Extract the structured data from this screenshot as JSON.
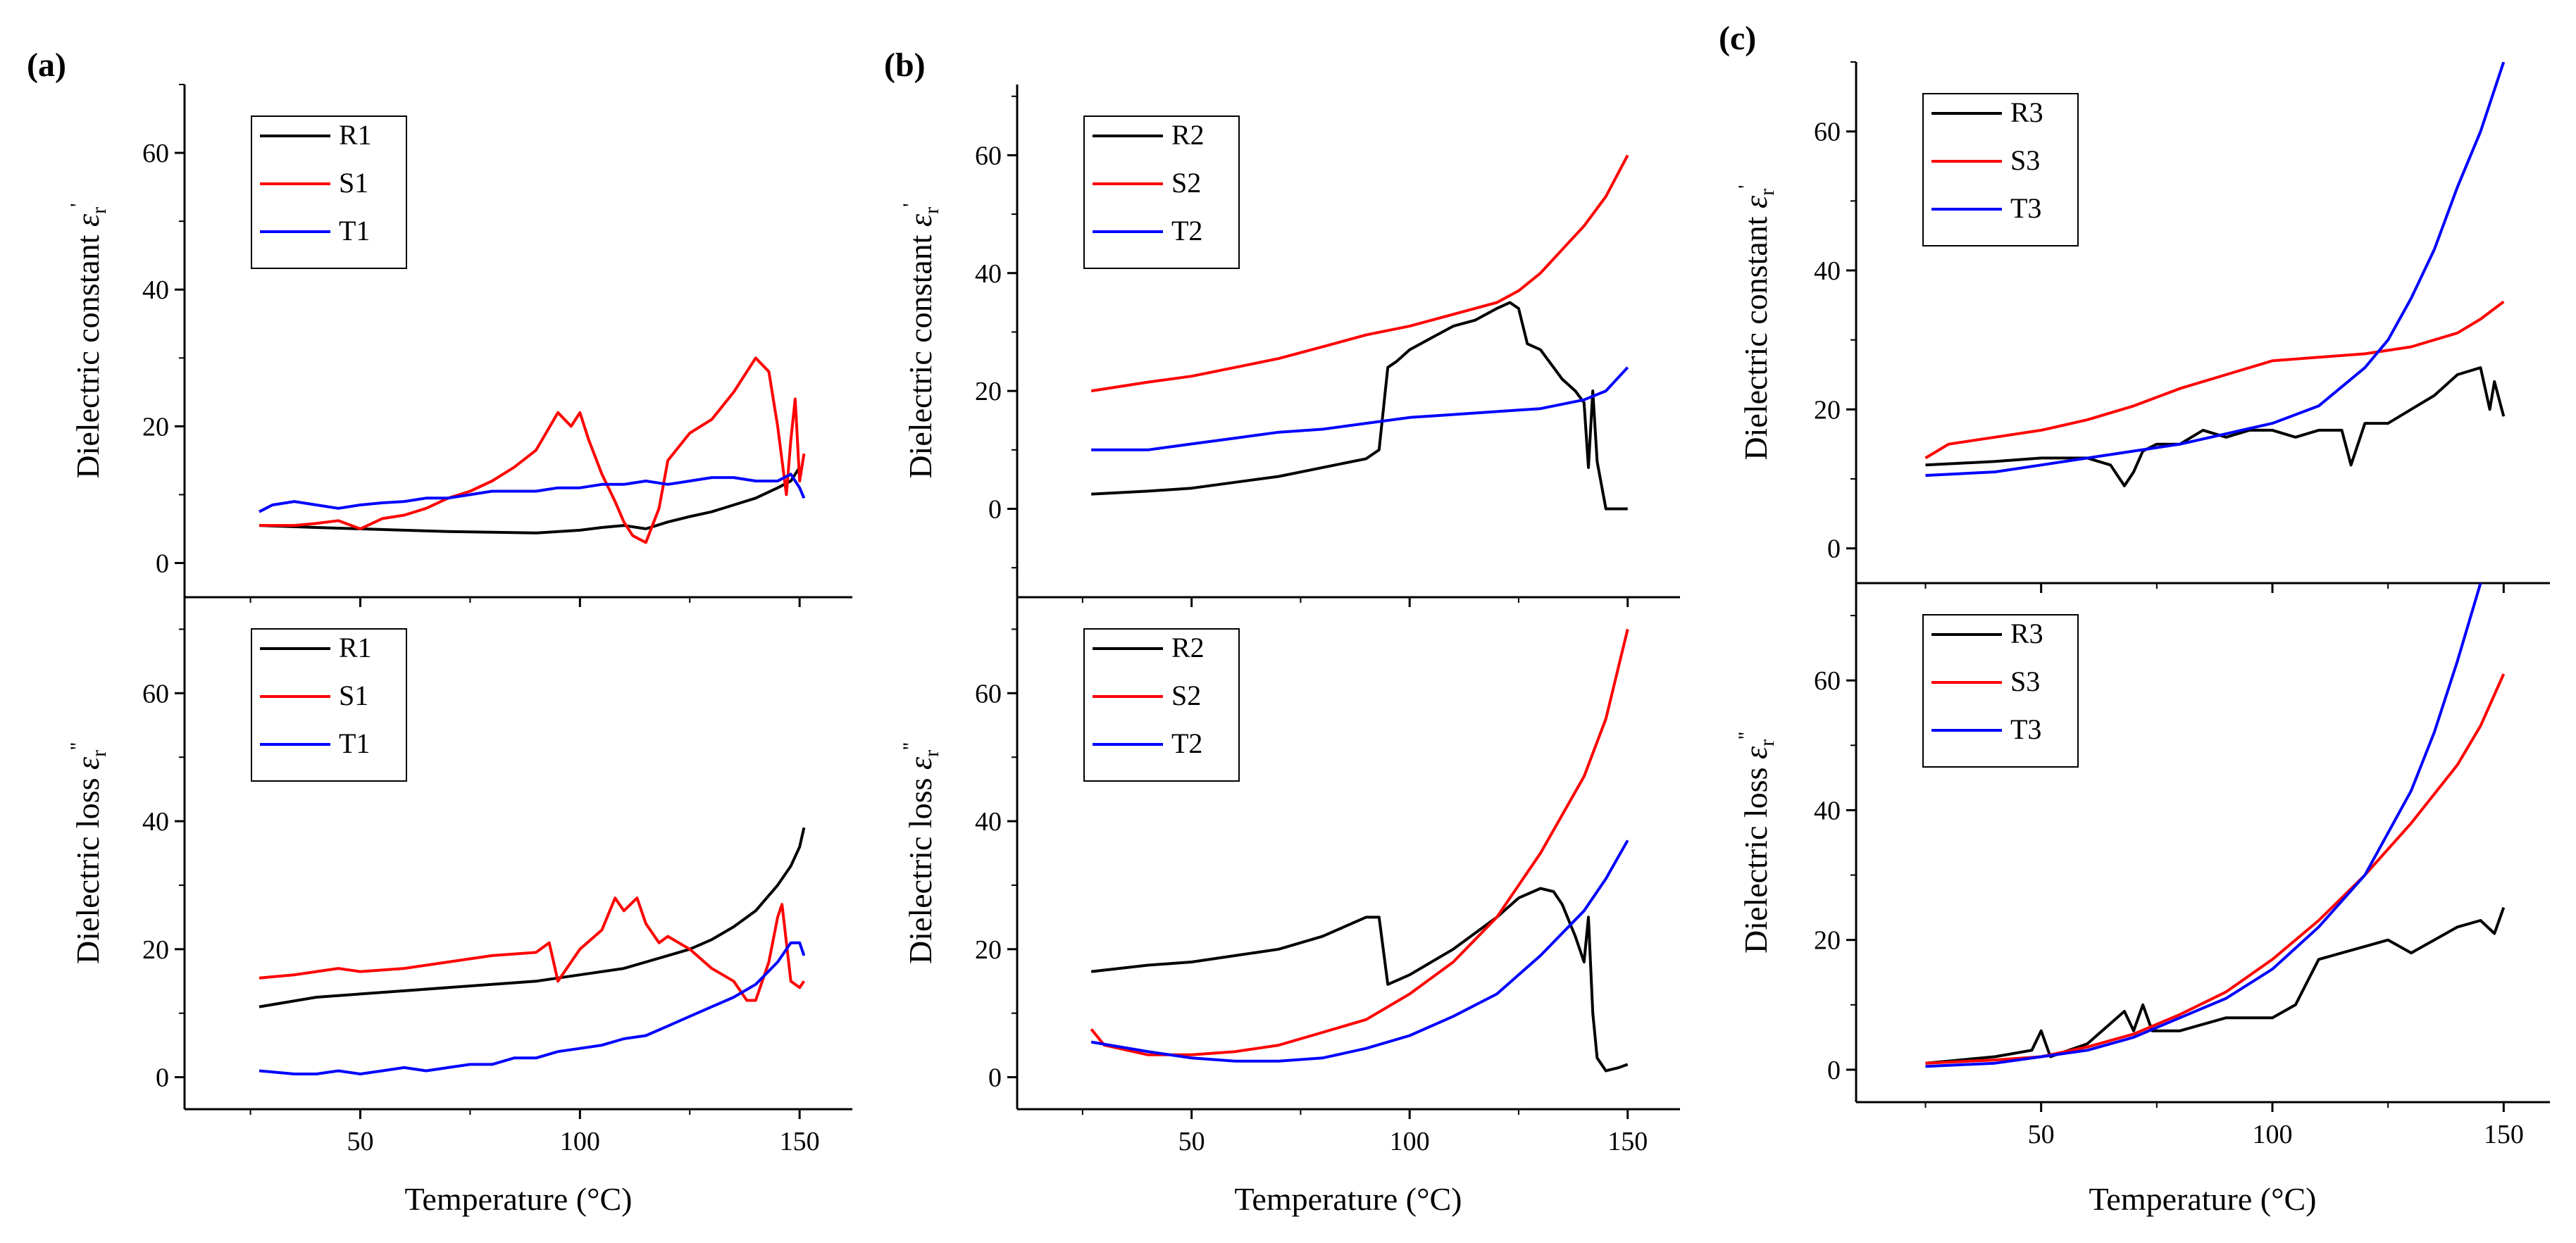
{
  "panels": [
    {
      "letter": "(a)",
      "xlabel": "Temperature (°C)"
    },
    {
      "letter": "(b)",
      "xlabel": "Temperature (°C)"
    },
    {
      "letter": "(c)",
      "xlabel": "Temperature (°C)"
    }
  ],
  "colors": {
    "R": "#000000",
    "S": "#ff0000",
    "T": "#0000ff",
    "axis": "#000000"
  },
  "chart_data": [
    {
      "type": "line",
      "panel": "(a)",
      "subplot": "top",
      "ylabel": "Dielectric constant ε_r'",
      "ylabel_main": "Dielectric constant ",
      "ylabel_sym": "ε",
      "ylabel_sub": "r",
      "ylabel_sup": "'",
      "xlim": [
        10,
        162
      ],
      "ylim": [
        -5,
        70
      ],
      "xticks": [
        50,
        100,
        150
      ],
      "yticks": [
        0,
        20,
        40,
        60
      ],
      "legend_position": "top-left",
      "series": [
        {
          "name": "R1",
          "color": "#000000",
          "x": [
            27,
            40,
            50,
            60,
            70,
            80,
            90,
            100,
            105,
            110,
            115,
            120,
            125,
            130,
            135,
            140,
            145,
            148,
            150
          ],
          "y": [
            5.5,
            5.2,
            5.0,
            4.8,
            4.6,
            4.5,
            4.4,
            4.8,
            5.2,
            5.5,
            5.0,
            6.0,
            6.8,
            7.5,
            8.5,
            9.5,
            11.0,
            12.0,
            14.0
          ]
        },
        {
          "name": "S1",
          "color": "#ff0000",
          "x": [
            27,
            35,
            40,
            45,
            50,
            55,
            60,
            65,
            70,
            75,
            80,
            85,
            90,
            95,
            98,
            100,
            102,
            105,
            108,
            110,
            112,
            115,
            118,
            120,
            125,
            130,
            135,
            140,
            143,
            145,
            147,
            148,
            149,
            150,
            151
          ],
          "y": [
            5.5,
            5.5,
            5.8,
            6.2,
            5.0,
            6.5,
            7.0,
            8.0,
            9.5,
            10.5,
            12.0,
            14.0,
            16.5,
            22.0,
            20.0,
            22.0,
            18.0,
            13.0,
            9.0,
            6.0,
            4.0,
            3.0,
            8.0,
            15.0,
            19.0,
            21.0,
            25.0,
            30.0,
            28.0,
            20.0,
            10.0,
            18.0,
            24.0,
            12.0,
            16.0
          ]
        },
        {
          "name": "T1",
          "color": "#0000ff",
          "x": [
            27,
            30,
            35,
            40,
            45,
            50,
            55,
            60,
            65,
            70,
            75,
            80,
            85,
            90,
            95,
            100,
            105,
            110,
            115,
            120,
            125,
            130,
            135,
            140,
            145,
            148,
            150,
            151
          ],
          "y": [
            7.5,
            8.5,
            9.0,
            8.5,
            8.0,
            8.5,
            8.8,
            9.0,
            9.5,
            9.5,
            10.0,
            10.5,
            10.5,
            10.5,
            11.0,
            11.0,
            11.5,
            11.5,
            12.0,
            11.5,
            12.0,
            12.5,
            12.5,
            12.0,
            12.0,
            13.0,
            11.0,
            9.5
          ]
        }
      ]
    },
    {
      "type": "line",
      "panel": "(a)",
      "subplot": "bottom",
      "ylabel": "Dielectric loss ε_r''",
      "ylabel_main": "Dielectric loss ",
      "ylabel_sym": "ε",
      "ylabel_sub": "r",
      "ylabel_sup": "''",
      "xlim": [
        10,
        162
      ],
      "ylim": [
        -5,
        75
      ],
      "xticks": [
        50,
        100,
        150
      ],
      "yticks": [
        0,
        20,
        40,
        60
      ],
      "legend_position": "top-left",
      "series": [
        {
          "name": "R1",
          "color": "#000000",
          "x": [
            27,
            40,
            50,
            60,
            70,
            80,
            90,
            100,
            110,
            115,
            120,
            125,
            130,
            135,
            140,
            145,
            148,
            150,
            151
          ],
          "y": [
            11,
            12.5,
            13,
            13.5,
            14,
            14.5,
            15,
            16,
            17,
            18,
            19,
            20,
            21.5,
            23.5,
            26,
            30,
            33,
            36,
            39
          ]
        },
        {
          "name": "S1",
          "color": "#ff0000",
          "x": [
            27,
            35,
            40,
            45,
            50,
            60,
            70,
            80,
            90,
            93,
            95,
            98,
            100,
            105,
            108,
            110,
            113,
            115,
            118,
            120,
            125,
            130,
            135,
            138,
            140,
            143,
            145,
            146,
            148,
            150,
            151
          ],
          "y": [
            15.5,
            16,
            16.5,
            17,
            16.5,
            17,
            18,
            19,
            19.5,
            21,
            15,
            18,
            20,
            23,
            28,
            26,
            28,
            24,
            21,
            22,
            20,
            17,
            15,
            12,
            12,
            18,
            25,
            27,
            15,
            14,
            15
          ]
        },
        {
          "name": "T1",
          "color": "#0000ff",
          "x": [
            27,
            35,
            40,
            45,
            50,
            55,
            60,
            65,
            70,
            75,
            80,
            85,
            90,
            95,
            100,
            105,
            110,
            115,
            120,
            125,
            130,
            135,
            140,
            145,
            148,
            150,
            151
          ],
          "y": [
            1,
            0.5,
            0.5,
            1,
            0.5,
            1,
            1.5,
            1,
            1.5,
            2,
            2,
            3,
            3,
            4,
            4.5,
            5,
            6,
            6.5,
            8,
            9.5,
            11,
            12.5,
            14.5,
            18,
            21,
            21,
            19
          ]
        }
      ]
    },
    {
      "type": "line",
      "panel": "(b)",
      "subplot": "top",
      "ylabel": "Dielectric constant ε_r'",
      "ylabel_main": "Dielectric constant ",
      "ylabel_sym": "ε",
      "ylabel_sub": "r",
      "ylabel_sup": "'",
      "xlim": [
        10,
        162
      ],
      "ylim": [
        -15,
        72
      ],
      "xticks": [
        50,
        100,
        150
      ],
      "yticks": [
        0,
        20,
        40,
        60
      ],
      "legend_position": "top-left",
      "series": [
        {
          "name": "R2",
          "color": "#000000",
          "x": [
            27,
            40,
            50,
            60,
            70,
            80,
            90,
            93,
            95,
            97,
            100,
            105,
            110,
            115,
            120,
            123,
            125,
            127,
            130,
            133,
            135,
            138,
            140,
            141,
            142,
            143,
            145,
            147,
            150
          ],
          "y": [
            2.5,
            3,
            3.5,
            4.5,
            5.5,
            7,
            8.5,
            10,
            24,
            25,
            27,
            29,
            31,
            32,
            34,
            35,
            34,
            28,
            27,
            24,
            22,
            20,
            18,
            7,
            20,
            8,
            0,
            0,
            0
          ]
        },
        {
          "name": "S2",
          "color": "#ff0000",
          "x": [
            27,
            40,
            50,
            60,
            70,
            80,
            90,
            100,
            110,
            120,
            125,
            130,
            135,
            140,
            145,
            150
          ],
          "y": [
            20,
            21.5,
            22.5,
            24,
            25.5,
            27.5,
            29.5,
            31,
            33,
            35,
            37,
            40,
            44,
            48,
            53,
            60
          ]
        },
        {
          "name": "T2",
          "color": "#0000ff",
          "x": [
            27,
            40,
            50,
            60,
            70,
            80,
            90,
            100,
            110,
            120,
            130,
            140,
            145,
            150
          ],
          "y": [
            10,
            10,
            11,
            12,
            13,
            13.5,
            14.5,
            15.5,
            16,
            16.5,
            17,
            18.5,
            20,
            24
          ]
        }
      ]
    },
    {
      "type": "line",
      "panel": "(b)",
      "subplot": "bottom",
      "ylabel": "Dielectric loss ε_r''",
      "ylabel_main": "Dielectric loss ",
      "ylabel_sym": "ε",
      "ylabel_sub": "r",
      "ylabel_sup": "''",
      "xlim": [
        10,
        162
      ],
      "ylim": [
        -5,
        75
      ],
      "xticks": [
        50,
        100,
        150
      ],
      "yticks": [
        0,
        20,
        40,
        60
      ],
      "legend_position": "top-left",
      "series": [
        {
          "name": "R2",
          "color": "#000000",
          "x": [
            27,
            40,
            50,
            60,
            70,
            80,
            90,
            93,
            95,
            100,
            110,
            120,
            125,
            130,
            133,
            135,
            138,
            140,
            141,
            142,
            143,
            145,
            148,
            150
          ],
          "y": [
            16.5,
            17.5,
            18,
            19,
            20,
            22,
            25,
            25,
            14.5,
            16,
            20,
            25,
            28,
            29.5,
            29,
            27,
            22,
            18,
            25,
            10,
            3,
            1,
            1.5,
            2
          ]
        },
        {
          "name": "S2",
          "color": "#ff0000",
          "x": [
            27,
            30,
            40,
            50,
            60,
            70,
            80,
            90,
            100,
            110,
            120,
            130,
            140,
            145,
            150
          ],
          "y": [
            7.5,
            5,
            3.5,
            3.5,
            4,
            5,
            7,
            9,
            13,
            18,
            25,
            35,
            47,
            56,
            70
          ]
        },
        {
          "name": "T2",
          "color": "#0000ff",
          "x": [
            27,
            40,
            50,
            60,
            70,
            80,
            90,
            100,
            110,
            120,
            130,
            140,
            145,
            150
          ],
          "y": [
            5.5,
            4,
            3,
            2.5,
            2.5,
            3,
            4.5,
            6.5,
            9.5,
            13,
            19,
            26,
            31,
            37
          ]
        }
      ]
    },
    {
      "type": "line",
      "panel": "(c)",
      "subplot": "top",
      "ylabel": "Dielectric constant ε_r'",
      "ylabel_main": "Dielectric constant ",
      "ylabel_sym": "ε",
      "ylabel_sub": "r",
      "ylabel_sup": "'",
      "xlim": [
        10,
        160
      ],
      "ylim": [
        -5,
        70
      ],
      "xticks": [
        50,
        100,
        150
      ],
      "yticks": [
        0,
        20,
        40,
        60
      ],
      "legend_position": "top-left",
      "series": [
        {
          "name": "R3",
          "color": "#000000",
          "x": [
            25,
            40,
            50,
            60,
            65,
            68,
            70,
            72,
            75,
            80,
            85,
            90,
            95,
            100,
            105,
            110,
            115,
            117,
            120,
            125,
            130,
            135,
            140,
            145,
            147,
            148,
            150
          ],
          "y": [
            12,
            12.5,
            13,
            13,
            12,
            9,
            11,
            14,
            15,
            15,
            17,
            16,
            17,
            17,
            16,
            17,
            17,
            12,
            18,
            18,
            20,
            22,
            25,
            26,
            20,
            24,
            19
          ]
        },
        {
          "name": "S3",
          "color": "#ff0000",
          "x": [
            25,
            30,
            40,
            50,
            60,
            70,
            80,
            90,
            100,
            110,
            120,
            130,
            140,
            145,
            150
          ],
          "y": [
            13,
            15,
            16,
            17,
            18.5,
            20.5,
            23,
            25,
            27,
            27.5,
            28,
            29,
            31,
            33,
            35.5
          ]
        },
        {
          "name": "T3",
          "color": "#0000ff",
          "x": [
            25,
            40,
            50,
            60,
            70,
            80,
            90,
            100,
            110,
            120,
            125,
            130,
            135,
            140,
            145,
            150
          ],
          "y": [
            10.5,
            11,
            12,
            13,
            14,
            15,
            16.5,
            18,
            20.5,
            26,
            30,
            36,
            43,
            52,
            60,
            70
          ]
        }
      ]
    },
    {
      "type": "line",
      "panel": "(c)",
      "subplot": "bottom",
      "ylabel": "Dielectric loss ε_r''",
      "ylabel_main": "Dielectric loss ",
      "ylabel_sym": "ε",
      "ylabel_sub": "r",
      "ylabel_sup": "''",
      "xlim": [
        10,
        160
      ],
      "ylim": [
        -5,
        75
      ],
      "xticks": [
        50,
        100,
        150
      ],
      "yticks": [
        0,
        20,
        40,
        60
      ],
      "legend_position": "top-left",
      "series": [
        {
          "name": "R3",
          "color": "#000000",
          "x": [
            25,
            40,
            48,
            50,
            52,
            60,
            68,
            70,
            72,
            74,
            80,
            90,
            100,
            105,
            110,
            115,
            120,
            125,
            130,
            135,
            140,
            145,
            148,
            150
          ],
          "y": [
            1,
            2,
            3,
            6,
            2,
            4,
            9,
            6,
            10,
            6,
            6,
            8,
            8,
            10,
            17,
            18,
            19,
            20,
            18,
            20,
            22,
            23,
            21,
            25
          ]
        },
        {
          "name": "S3",
          "color": "#ff0000",
          "x": [
            25,
            40,
            50,
            60,
            70,
            80,
            90,
            100,
            110,
            120,
            130,
            140,
            145,
            150
          ],
          "y": [
            1,
            1.5,
            2,
            3.5,
            5.5,
            8.5,
            12,
            17,
            23,
            30,
            38,
            47,
            53,
            61
          ]
        },
        {
          "name": "T3",
          "color": "#0000ff",
          "x": [
            25,
            40,
            50,
            60,
            70,
            80,
            90,
            100,
            110,
            120,
            130,
            135,
            140,
            145
          ],
          "y": [
            0.5,
            1,
            2,
            3,
            5,
            8,
            11,
            15.5,
            22,
            30,
            43,
            52,
            63,
            75
          ]
        }
      ]
    }
  ]
}
